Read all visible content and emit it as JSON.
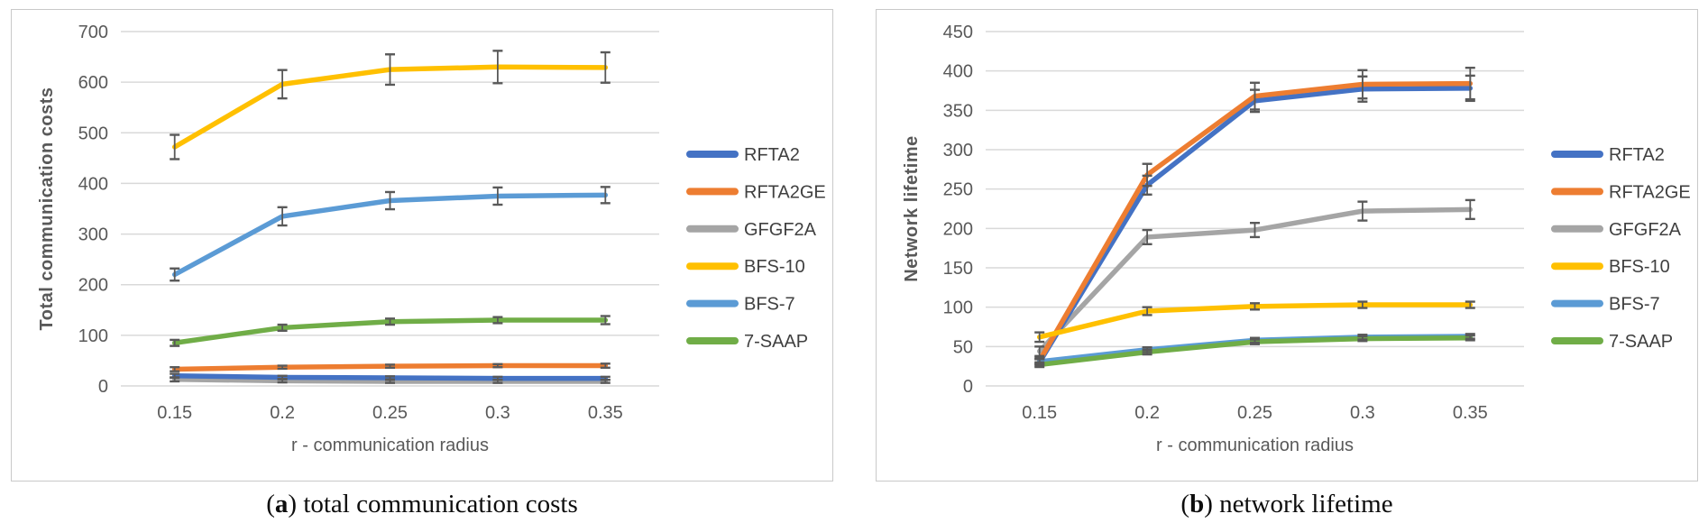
{
  "style": {
    "panel_border_color": "#c9c9c9",
    "gridline_color": "#d9d9d9",
    "error_bar_color": "#595959",
    "axis_text_color": "#595959",
    "legend_text_color": "#404040"
  },
  "captions": {
    "a": {
      "open_paren": "(",
      "letter": "a",
      "close_paren": ")",
      "label": "total communication costs"
    },
    "b": {
      "open_paren": "(",
      "letter": "b",
      "close_paren": ")",
      "label": "network lifetime"
    }
  },
  "chart_data": [
    {
      "id": "a",
      "type": "line",
      "title": "",
      "ylabel": "Total communication costs",
      "xlabel": "r - communication radius",
      "ylim": [
        0,
        700
      ],
      "ytick_step": 100,
      "grid": true,
      "legend_position": "right",
      "categories": [
        "0.15",
        "0.2",
        "0.25",
        "0.3",
        "0.35"
      ],
      "draw_order": [
        2,
        0,
        1,
        3,
        4,
        5
      ],
      "series": [
        {
          "name": "RFTA2",
          "color": "#4472C4",
          "values": [
            20,
            17,
            16,
            15,
            15
          ],
          "errors": [
            4,
            3,
            3,
            3,
            3
          ]
        },
        {
          "name": "RFTA2GE",
          "color": "#ED7D31",
          "values": [
            33,
            37,
            39,
            40,
            40
          ],
          "errors": [
            4,
            3,
            3,
            3,
            4
          ]
        },
        {
          "name": "GFGF2A",
          "color": "#A5A5A5",
          "values": [
            13,
            10,
            9,
            9,
            9
          ],
          "errors": [
            4,
            3,
            3,
            3,
            3
          ]
        },
        {
          "name": "BFS-10",
          "color": "#FFC000",
          "values": [
            472,
            596,
            625,
            630,
            629
          ],
          "errors": [
            24,
            28,
            30,
            32,
            30
          ]
        },
        {
          "name": "BFS-7",
          "color": "#5B9BD5",
          "values": [
            220,
            335,
            366,
            375,
            377
          ],
          "errors": [
            12,
            18,
            17,
            17,
            16
          ]
        },
        {
          "name": "7-SAAP",
          "color": "#70AD47",
          "values": [
            85,
            115,
            127,
            130,
            130
          ],
          "errors": [
            6,
            6,
            6,
            6,
            8
          ]
        }
      ]
    },
    {
      "id": "b",
      "type": "line",
      "title": "",
      "ylabel": "Network lifetime",
      "xlabel": "r - communication radius",
      "ylim": [
        0,
        450
      ],
      "ytick_step": 50,
      "grid": true,
      "legend_position": "right",
      "categories": [
        "0.15",
        "0.2",
        "0.25",
        "0.3",
        "0.35"
      ],
      "draw_order": [
        2,
        0,
        1,
        3,
        4,
        5
      ],
      "series": [
        {
          "name": "RFTA2",
          "color": "#4472C4",
          "values": [
            30,
            255,
            362,
            377,
            378
          ],
          "errors": [
            4,
            12,
            14,
            16,
            16
          ]
        },
        {
          "name": "RFTA2GE",
          "color": "#ED7D31",
          "values": [
            32,
            268,
            368,
            383,
            384
          ],
          "errors": [
            4,
            14,
            17,
            18,
            20
          ]
        },
        {
          "name": "GFGF2A",
          "color": "#A5A5A5",
          "values": [
            44,
            189,
            198,
            222,
            224
          ],
          "errors": [
            6,
            9,
            9,
            12,
            12
          ]
        },
        {
          "name": "BFS-10",
          "color": "#FFC000",
          "values": [
            62,
            95,
            101,
            103,
            103
          ],
          "errors": [
            6,
            5,
            4,
            4,
            4
          ]
        },
        {
          "name": "BFS-7",
          "color": "#5B9BD5",
          "values": [
            31,
            46,
            58,
            62,
            63
          ],
          "errors": [
            3,
            3,
            3,
            3,
            3
          ]
        },
        {
          "name": "7-SAAP",
          "color": "#70AD47",
          "values": [
            27,
            43,
            56,
            60,
            61
          ],
          "errors": [
            3,
            3,
            3,
            3,
            3
          ]
        }
      ]
    }
  ]
}
